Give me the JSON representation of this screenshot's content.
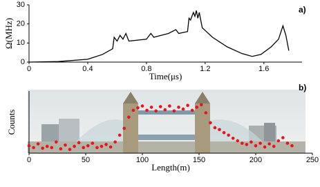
{
  "chart_data": [
    {
      "type": "line",
      "panel": "a)",
      "xlabel": "Time(μs)",
      "ylabel": "Ω(MHz)",
      "color": "#000000",
      "x": [
        0,
        0.2,
        0.4,
        0.5,
        0.57,
        0.58,
        0.6,
        0.62,
        0.64,
        0.66,
        0.68,
        0.8,
        0.83,
        0.85,
        0.9,
        0.95,
        1.0,
        1.02,
        1.08,
        1.09,
        1.1,
        1.12,
        1.13,
        1.14,
        1.15,
        1.16,
        1.18,
        1.25,
        1.35,
        1.45,
        1.52,
        1.58,
        1.65,
        1.7,
        1.73,
        1.75,
        1.77
      ],
      "values": [
        0,
        0.3,
        1.5,
        4,
        7,
        13,
        11,
        14,
        12,
        15,
        11,
        12,
        15,
        13,
        14,
        15,
        17,
        15,
        16,
        23,
        22,
        26,
        24,
        27,
        23,
        26,
        18,
        13,
        8,
        4.5,
        3,
        4,
        8,
        12,
        19,
        14,
        6
      ],
      "xlim": [
        0,
        1.86
      ],
      "xticks": [
        0,
        0.4,
        0.8,
        1.2,
        1.6
      ],
      "ylim": [
        0,
        30
      ],
      "yticks": [
        0,
        10,
        20,
        30
      ]
    },
    {
      "type": "scatter",
      "panel": "b)",
      "xlabel": "Length(m)",
      "ylabel": "Counts",
      "color": "#e8141c",
      "x": [
        0,
        4,
        8,
        12,
        16,
        20,
        24,
        28,
        32,
        36,
        40,
        44,
        48,
        52,
        56,
        60,
        64,
        68,
        72,
        76,
        80,
        84,
        88,
        92,
        96,
        100,
        104,
        108,
        112,
        116,
        120,
        124,
        128,
        132,
        136,
        140,
        144,
        148,
        152,
        156,
        160,
        164,
        168,
        172,
        176,
        180,
        184,
        188,
        192,
        196,
        200,
        204,
        208,
        212,
        216,
        220,
        224,
        228,
        232
      ],
      "values": [
        1.2,
        0.9,
        1.5,
        0.8,
        1.1,
        0.9,
        1.8,
        0.7,
        1.3,
        0.6,
        1.1,
        1.7,
        0.9,
        1.2,
        1.6,
        0.9,
        1.1,
        1.4,
        1.0,
        1.8,
        2.9,
        4.0,
        5.8,
        6.9,
        7.3,
        7.6,
        6.9,
        7.4,
        6.8,
        7.5,
        7.0,
        7.6,
        6.8,
        7.4,
        7.1,
        7.7,
        6.9,
        7.4,
        7.8,
        6.5,
        4.9,
        4.1,
        3.8,
        3.3,
        2.9,
        2.4,
        2.0,
        1.6,
        1.4,
        1.8,
        1.2,
        1.6,
        1.0,
        1.5,
        1.1,
        2.0,
        2.5,
        1.6,
        1.2
      ],
      "xlim": [
        0,
        250
      ],
      "xticks": [
        0,
        50,
        100,
        150,
        200,
        250
      ],
      "ylim": [
        0,
        10
      ]
    }
  ]
}
